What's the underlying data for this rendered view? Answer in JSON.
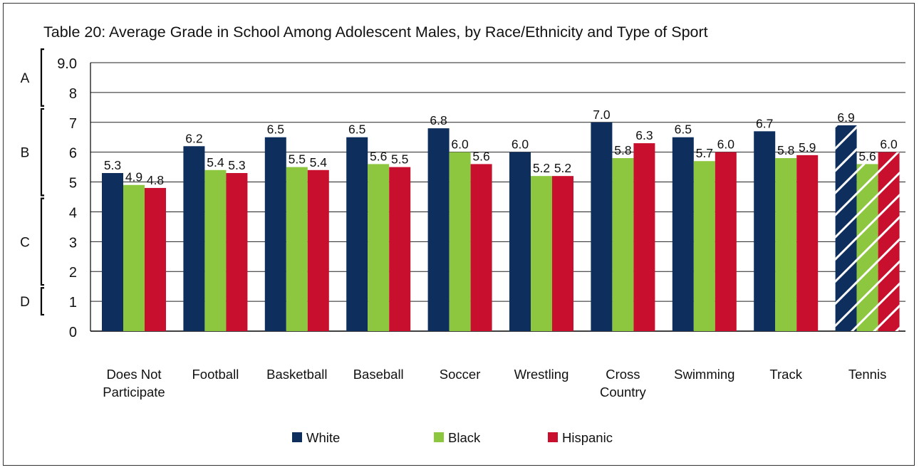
{
  "chart_data": {
    "type": "bar",
    "title": "Table 20: Average Grade in School Among Adolescent Males, by Race/Ethnicity and Type of Sport",
    "xlabel": "",
    "ylabel": "",
    "ylim": [
      0,
      9
    ],
    "yticks": [
      "0",
      "1",
      "2",
      "3",
      "4",
      "5",
      "6",
      "7",
      "8",
      "9.0"
    ],
    "grid": true,
    "legend": "bottom",
    "categories": [
      [
        "Does Not",
        "Participate"
      ],
      [
        "Football"
      ],
      [
        "Basketball"
      ],
      [
        "Baseball"
      ],
      [
        "Soccer"
      ],
      [
        "Wrestling"
      ],
      [
        "Cross",
        "Country"
      ],
      [
        "Swimming"
      ],
      [
        "Track"
      ],
      [
        "Tennis"
      ]
    ],
    "series": [
      {
        "name": "White",
        "color": "#0e2f5e",
        "values": [
          5.3,
          6.2,
          6.5,
          6.5,
          6.8,
          6.0,
          7.0,
          6.5,
          6.7,
          6.9
        ],
        "labels": [
          "5.3",
          "6.2",
          "6.5",
          "6.5",
          "6.8",
          "6.0",
          "7.0",
          "6.5",
          "6.7",
          "6.9"
        ]
      },
      {
        "name": "Black",
        "color": "#8dc63f",
        "values": [
          4.9,
          5.4,
          5.5,
          5.6,
          6.0,
          5.2,
          5.8,
          5.7,
          5.8,
          5.6
        ],
        "labels": [
          "4.9",
          "5.4",
          "5.5",
          "5.6",
          "6.0",
          "5.2",
          "5.8",
          "5.7",
          "5.8",
          "5.6"
        ]
      },
      {
        "name": "Hispanic",
        "color": "#c8102e",
        "values": [
          4.8,
          5.3,
          5.4,
          5.5,
          5.6,
          5.2,
          6.3,
          6.0,
          5.9,
          6.0
        ],
        "labels": [
          "4.8",
          "5.3",
          "5.4",
          "5.5",
          "5.6",
          "5.2",
          "6.3",
          "6.0",
          "5.9",
          "6.0"
        ]
      }
    ],
    "hatched_category": "Tennis",
    "grade_bands": [
      {
        "label": "A",
        "from": 8,
        "to": 9
      },
      {
        "label": "B",
        "from": 5,
        "to": 7
      },
      {
        "label": "C",
        "from": 2,
        "to": 4
      },
      {
        "label": "D",
        "from": 1,
        "to": 1
      }
    ]
  }
}
